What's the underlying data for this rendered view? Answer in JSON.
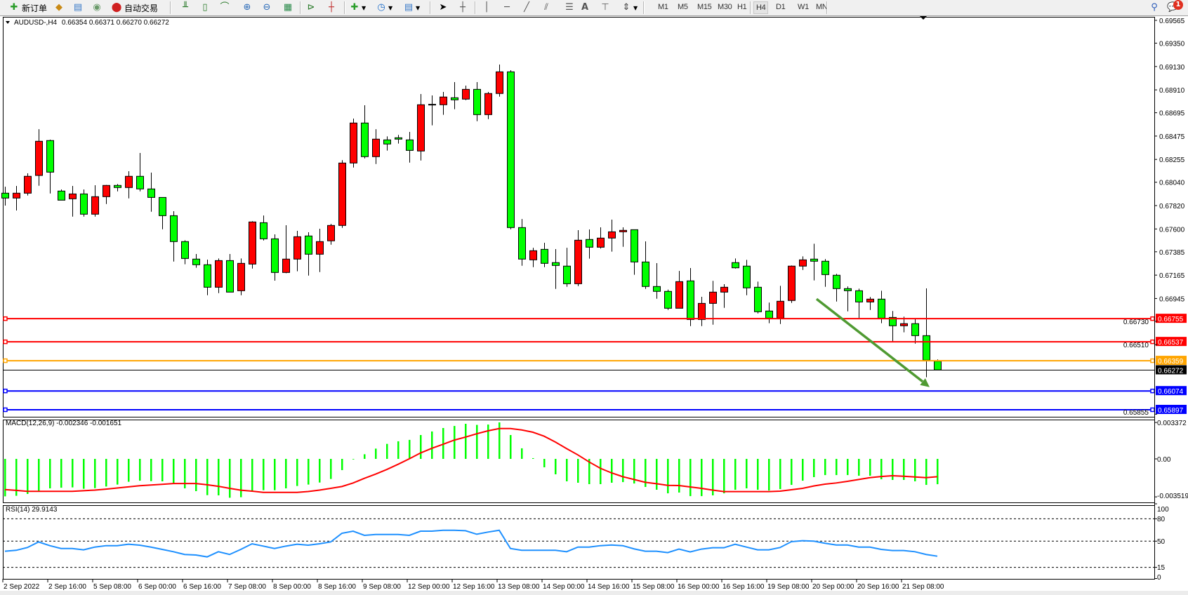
{
  "toolbar": {
    "new_order_label": "新订单",
    "auto_trade_label": "自动交易",
    "timeframes": [
      "M1",
      "M5",
      "M15",
      "M30",
      "H1",
      "H4",
      "D1",
      "W1",
      "MN"
    ],
    "active_timeframe": "H4",
    "notification_count": "1",
    "icons": [
      "new-order-icon",
      "history-icon",
      "data-window-icon",
      "signals-icon",
      "auto-trade-icon",
      "bar-chart-icon",
      "candlestick-icon",
      "line-chart-icon",
      "zoom-in-icon",
      "zoom-out-icon",
      "tile-windows-icon",
      "auto-scroll-icon",
      "chart-shift-icon",
      "indicators-icon",
      "periods-icon",
      "templates-icon",
      "cursor-icon",
      "crosshair-icon",
      "vertical-line-icon",
      "horizontal-line-icon",
      "trendline-icon",
      "equidistant-channel-icon",
      "fibonacci-icon",
      "text-icon",
      "text-label-icon",
      "arrows-icon",
      "search-icon",
      "notification-icon"
    ]
  },
  "chart": {
    "symbol_label": "AUDUSD-,H4",
    "ohlc_label": "0.66354 0.66371 0.66270 0.66272",
    "bull_color": "#ff0000",
    "bear_color": "#00ff00",
    "price_ticks": [
      "0.69565",
      "0.69350",
      "0.69130",
      "0.68910",
      "0.68695",
      "0.68475",
      "0.68255",
      "0.68040",
      "0.67820",
      "0.67600",
      "0.67385",
      "0.67165",
      "0.66945",
      "0.66730",
      "0.66510",
      "0.65855"
    ],
    "bid": {
      "value": "0.66272",
      "color": "#000000"
    },
    "levels": [
      {
        "value": "0.66755",
        "color": "#ff0000"
      },
      {
        "value": "0.66537",
        "color": "#ff0000"
      },
      {
        "value": "0.66359",
        "color": "#ffa500"
      },
      {
        "value": "0.66074",
        "color": "#0000ff"
      },
      {
        "value": "0.65897",
        "color": "#0000ff"
      }
    ],
    "arrow": {
      "from": {
        "candle": 72,
        "price": 0.6694
      },
      "to": {
        "candle": 82,
        "price": 0.6611
      },
      "color": "#4f9a32",
      "direction": "down"
    },
    "time_labels": [
      "2 Sep 2022",
      "2 Sep 16:00",
      "5 Sep 08:00",
      "6 Sep 00:00",
      "6 Sep 16:00",
      "7 Sep 08:00",
      "8 Sep 00:00",
      "8 Sep 16:00",
      "9 Sep 08:00",
      "12 Sep 00:00",
      "12 Sep 16:00",
      "13 Sep 08:00",
      "14 Sep 00:00",
      "14 Sep 16:00",
      "15 Sep 08:00",
      "16 Sep 00:00",
      "16 Sep 16:00",
      "19 Sep 08:00",
      "20 Sep 00:00",
      "20 Sep 16:00",
      "21 Sep 08:00"
    ]
  },
  "chart_data": [
    {
      "type": "candlestick",
      "title": "AUDUSD-,H4",
      "timeframe": "H4",
      "ylim": [
        0.65855,
        0.69565
      ],
      "ohlc_fields": [
        "open",
        "high",
        "low",
        "close"
      ],
      "candles": [
        [
          0.67937,
          0.67998,
          0.6782,
          0.67891
        ],
        [
          0.67891,
          0.68005,
          0.67774,
          0.67937
        ],
        [
          0.67937,
          0.68124,
          0.67915,
          0.68096
        ],
        [
          0.68104,
          0.6854,
          0.68007,
          0.68426
        ],
        [
          0.68433,
          0.68441,
          0.67934,
          0.68135
        ],
        [
          0.67957,
          0.67972,
          0.67871,
          0.67871
        ],
        [
          0.67884,
          0.68005,
          0.67716,
          0.6793
        ],
        [
          0.6793,
          0.67972,
          0.67716,
          0.67739
        ],
        [
          0.67739,
          0.68012,
          0.67716,
          0.67904
        ],
        [
          0.67904,
          0.68014,
          0.67835,
          0.6801
        ],
        [
          0.6801,
          0.68023,
          0.67954,
          0.6799
        ],
        [
          0.6799,
          0.68144,
          0.67888,
          0.68096
        ],
        [
          0.68096,
          0.68316,
          0.67954,
          0.67977
        ],
        [
          0.67977,
          0.68131,
          0.67762,
          0.67897
        ],
        [
          0.67897,
          0.67897,
          0.67597,
          0.67725
        ],
        [
          0.67725,
          0.67767,
          0.67293,
          0.67481
        ],
        [
          0.67481,
          0.67494,
          0.67267,
          0.67322
        ],
        [
          0.67316,
          0.67364,
          0.67234,
          0.67263
        ],
        [
          0.67263,
          0.67311,
          0.66976,
          0.67051
        ],
        [
          0.67051,
          0.67322,
          0.66996,
          0.67302
        ],
        [
          0.67302,
          0.67364,
          0.67005,
          0.67005
        ],
        [
          0.67018,
          0.67322,
          0.66976,
          0.67276
        ],
        [
          0.67269,
          0.67673,
          0.67227,
          0.67666
        ],
        [
          0.67659,
          0.67727,
          0.67491,
          0.67507
        ],
        [
          0.67507,
          0.67549,
          0.67113,
          0.6719
        ],
        [
          0.6719,
          0.67635,
          0.67183,
          0.67316
        ],
        [
          0.67316,
          0.67582,
          0.67201,
          0.67527
        ],
        [
          0.67534,
          0.67569,
          0.67161,
          0.67362
        ],
        [
          0.67362,
          0.67602,
          0.67194,
          0.67481
        ],
        [
          0.67488,
          0.67648,
          0.67452,
          0.67633
        ],
        [
          0.67633,
          0.68248,
          0.6761,
          0.68221
        ],
        [
          0.68221,
          0.6864,
          0.68179,
          0.68598
        ],
        [
          0.68598,
          0.68765,
          0.68265,
          0.68281
        ],
        [
          0.68281,
          0.6854,
          0.68212,
          0.68446
        ],
        [
          0.68439,
          0.68472,
          0.68338,
          0.684
        ],
        [
          0.68459,
          0.68486,
          0.68404,
          0.68446
        ],
        [
          0.68439,
          0.68514,
          0.68225,
          0.6834
        ],
        [
          0.68334,
          0.68871,
          0.68245,
          0.6877
        ],
        [
          0.68774,
          0.68858,
          0.68576,
          0.6877
        ],
        [
          0.6877,
          0.68891,
          0.68675,
          0.68843
        ],
        [
          0.68836,
          0.68983,
          0.68728,
          0.68816
        ],
        [
          0.68823,
          0.6895,
          0.68813,
          0.68915
        ],
        [
          0.68915,
          0.68983,
          0.68615,
          0.68677
        ],
        [
          0.68677,
          0.68891,
          0.68635,
          0.68876
        ],
        [
          0.68876,
          0.69149,
          0.68846,
          0.6908
        ],
        [
          0.6908,
          0.69096,
          0.67597,
          0.67613
        ],
        [
          0.67613,
          0.67694,
          0.67253,
          0.67316
        ],
        [
          0.67309,
          0.67423,
          0.6724,
          0.67395
        ],
        [
          0.67408,
          0.6747,
          0.6724,
          0.67276
        ],
        [
          0.67283,
          0.6741,
          0.67035,
          0.67256
        ],
        [
          0.6725,
          0.67423,
          0.67055,
          0.67084
        ],
        [
          0.67084,
          0.67589,
          0.67062,
          0.67494
        ],
        [
          0.67501,
          0.67595,
          0.6732,
          0.67428
        ],
        [
          0.67428,
          0.67615,
          0.67415,
          0.67514
        ],
        [
          0.67514,
          0.67688,
          0.67386,
          0.67573
        ],
        [
          0.67573,
          0.67615,
          0.67432,
          0.67587
        ],
        [
          0.67593,
          0.67593,
          0.67168,
          0.67289
        ],
        [
          0.67289,
          0.67483,
          0.67035,
          0.67058
        ],
        [
          0.67058,
          0.67278,
          0.66943,
          0.67012
        ],
        [
          0.67012,
          0.67029,
          0.66837,
          0.66853
        ],
        [
          0.66853,
          0.67205,
          0.66853,
          0.67104
        ],
        [
          0.67111,
          0.67232,
          0.66685,
          0.66747
        ],
        [
          0.66747,
          0.66961,
          0.66685,
          0.66899
        ],
        [
          0.66899,
          0.67111,
          0.66698,
          0.67005
        ],
        [
          0.67005,
          0.6708,
          0.66857,
          0.67051
        ],
        [
          0.67283,
          0.67322,
          0.67227,
          0.67234
        ],
        [
          0.6725,
          0.67309,
          0.66976,
          0.67045
        ],
        [
          0.67051,
          0.67104,
          0.66804,
          0.6682
        ],
        [
          0.66827,
          0.66906,
          0.66712,
          0.6676
        ],
        [
          0.6676,
          0.67064,
          0.66705,
          0.66919
        ],
        [
          0.66926,
          0.67256,
          0.66903,
          0.6725
        ],
        [
          0.6725,
          0.67342,
          0.67214,
          0.67309
        ],
        [
          0.67316,
          0.67461,
          0.67115,
          0.67296
        ],
        [
          0.67296,
          0.67316,
          0.67055,
          0.6717
        ],
        [
          0.67164,
          0.67177,
          0.66916,
          0.67038
        ],
        [
          0.67038,
          0.67058,
          0.66824,
          0.67018
        ],
        [
          0.67018,
          0.67038,
          0.6676,
          0.66912
        ],
        [
          0.66912,
          0.66959,
          0.66837,
          0.66939
        ],
        [
          0.66939,
          0.67018,
          0.66712,
          0.6676
        ],
        [
          0.66767,
          0.66827,
          0.66542,
          0.66688
        ],
        [
          0.66688,
          0.66774,
          0.66626,
          0.66708
        ],
        [
          0.66708,
          0.66754,
          0.6652,
          0.66595
        ],
        [
          0.66595,
          0.6704,
          0.66203,
          0.66364
        ],
        [
          0.66354,
          0.66371,
          0.6627,
          0.66272
        ]
      ]
    },
    {
      "type": "bar+line",
      "title": "MACD(12,26,9)",
      "label_values": "-0.002346 -0.001651",
      "ylim": [
        -0.003519,
        0.003372
      ],
      "y_ticks": [
        "0.003372",
        "0.00",
        "-0.003519"
      ],
      "histogram_color": "#00ff00",
      "signal_color": "#ff0000",
      "macd": [
        -0.00347,
        -0.00342,
        -0.00325,
        -0.00299,
        -0.00273,
        -0.00267,
        -0.00264,
        -0.00277,
        -0.00271,
        -0.00256,
        -0.00238,
        -0.00212,
        -0.00202,
        -0.00206,
        -0.00208,
        -0.00234,
        -0.00273,
        -0.00299,
        -0.00336,
        -0.00338,
        -0.0036,
        -0.00355,
        -0.00303,
        -0.0029,
        -0.0029,
        -0.00273,
        -0.00251,
        -0.00238,
        -0.00219,
        -0.00186,
        -0.00104,
        -3e-05,
        0.00043,
        0.00095,
        0.00139,
        0.00163,
        0.00176,
        0.00221,
        0.00254,
        0.00286,
        0.00305,
        0.00325,
        0.00315,
        0.00318,
        0.00338,
        0.00221,
        0.00098,
        7e-05,
        -0.00078,
        -0.00143,
        -0.00208,
        -0.00221,
        -0.00234,
        -0.00234,
        -0.00221,
        -0.00215,
        -0.00228,
        -0.0026,
        -0.00286,
        -0.00319,
        -0.00312,
        -0.00345,
        -0.00345,
        -0.00338,
        -0.00319,
        -0.00286,
        -0.00273,
        -0.00286,
        -0.00293,
        -0.0028,
        -0.00241,
        -0.00202,
        -0.00169,
        -0.0015,
        -0.0015,
        -0.0015,
        -0.00156,
        -0.00156,
        -0.00189,
        -0.00195,
        -0.00195,
        -0.00208,
        -0.00241,
        -0.002346
      ],
      "signal": [
        -0.00284,
        -0.00292,
        -0.00301,
        -0.00301,
        -0.00301,
        -0.00301,
        -0.00301,
        -0.00295,
        -0.00289,
        -0.0028,
        -0.0027,
        -0.00259,
        -0.00249,
        -0.00242,
        -0.00236,
        -0.00228,
        -0.00228,
        -0.00228,
        -0.0024,
        -0.00254,
        -0.00273,
        -0.0029,
        -0.00299,
        -0.0031,
        -0.0031,
        -0.0031,
        -0.0031,
        -0.00302,
        -0.00289,
        -0.00273,
        -0.00256,
        -0.00223,
        -0.0018,
        -0.00141,
        -0.00098,
        -0.0005,
        1e-05,
        0.00055,
        0.00098,
        0.00135,
        0.00174,
        0.00202,
        0.00233,
        0.0026,
        0.00281,
        0.00281,
        0.00268,
        0.00247,
        0.0021,
        0.00156,
        0.00095,
        0.00037,
        -0.00028,
        -0.00087,
        -0.0013,
        -0.00165,
        -0.00191,
        -0.00217,
        -0.0023,
        -0.00245,
        -0.00247,
        -0.0026,
        -0.00273,
        -0.00289,
        -0.00303,
        -0.00303,
        -0.00303,
        -0.00303,
        -0.00303,
        -0.00299,
        -0.00286,
        -0.00273,
        -0.00251,
        -0.00234,
        -0.00223,
        -0.00208,
        -0.00191,
        -0.00174,
        -0.00163,
        -0.00156,
        -0.00161,
        -0.00167,
        -0.00174,
        -0.001651
      ]
    },
    {
      "type": "line",
      "title": "RSI(14)",
      "label_value": "29.9143",
      "ylim": [
        0,
        100
      ],
      "y_ticks": [
        "100",
        "80",
        "50",
        "15",
        "0"
      ],
      "levels": [
        80,
        50,
        15
      ],
      "line_color": "#1e90ff",
      "values": [
        36.5,
        37.8,
        41.5,
        49.0,
        44.0,
        40.2,
        40.2,
        38.4,
        42.1,
        44.0,
        44.0,
        45.9,
        44.6,
        42.1,
        39.0,
        35.9,
        32.2,
        31.5,
        29.0,
        35.9,
        32.2,
        39.0,
        46.5,
        43.4,
        40.2,
        43.4,
        45.9,
        44.6,
        46.5,
        49.0,
        60.6,
        63.4,
        57.8,
        59.0,
        59.0,
        59.0,
        57.8,
        63.4,
        63.4,
        64.6,
        64.6,
        64.0,
        59.3,
        62.2,
        64.6,
        40.2,
        37.8,
        37.8,
        37.8,
        37.8,
        35.9,
        42.1,
        42.1,
        44.0,
        44.9,
        44.0,
        39.7,
        36.6,
        36.6,
        34.7,
        39.4,
        35.6,
        39.4,
        41.2,
        41.2,
        45.9,
        42.1,
        38.4,
        38.4,
        41.5,
        49.3,
        50.6,
        50.0,
        47.2,
        44.9,
        44.9,
        42.1,
        42.1,
        39.0,
        37.5,
        37.5,
        35.9,
        32.2,
        29.9143
      ]
    }
  ]
}
